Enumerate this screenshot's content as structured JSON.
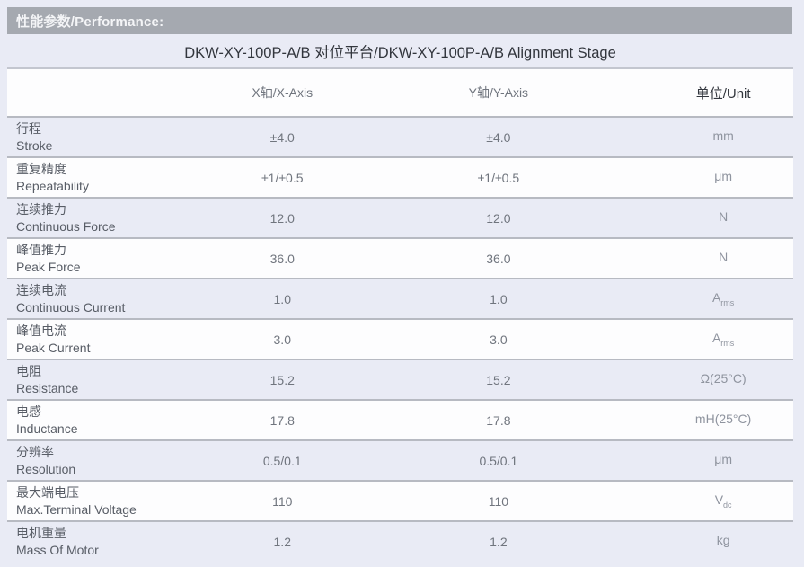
{
  "section": {
    "title": "性能参数/Performance:"
  },
  "table": {
    "title": "DKW-XY-100P-A/B 对位平台/DKW-XY-100P-A/B Alignment Stage",
    "columns": {
      "param": "",
      "x": "X轴/X-Axis",
      "y": "Y轴/Y-Axis",
      "unit": "单位/Unit"
    },
    "rows": [
      {
        "name_zh": "行程",
        "name_en": "Stroke",
        "x": "±4.0",
        "y": "±4.0",
        "unit": "mm",
        "unit_sub": ""
      },
      {
        "name_zh": "重复精度",
        "name_en": "Repeatability",
        "x": "±1/±0.5",
        "y": "±1/±0.5",
        "unit": "μm",
        "unit_sub": ""
      },
      {
        "name_zh": "连续推力",
        "name_en": "Continuous Force",
        "x": "12.0",
        "y": "12.0",
        "unit": "N",
        "unit_sub": ""
      },
      {
        "name_zh": "峰值推力",
        "name_en": "Peak Force",
        "x": "36.0",
        "y": "36.0",
        "unit": "N",
        "unit_sub": ""
      },
      {
        "name_zh": "连续电流",
        "name_en": "Continuous Current",
        "x": "1.0",
        "y": "1.0",
        "unit": "A",
        "unit_sub": "rms"
      },
      {
        "name_zh": "峰值电流",
        "name_en": "Peak Current",
        "x": "3.0",
        "y": "3.0",
        "unit": "A",
        "unit_sub": "rms"
      },
      {
        "name_zh": "电阻",
        "name_en": "Resistance",
        "x": "15.2",
        "y": "15.2",
        "unit": "Ω(25°C)",
        "unit_sub": ""
      },
      {
        "name_zh": "电感",
        "name_en": "Inductance",
        "x": "17.8",
        "y": "17.8",
        "unit": "mH(25°C)",
        "unit_sub": ""
      },
      {
        "name_zh": "分辨率",
        "name_en": "Resolution",
        "x": "0.5/0.1",
        "y": "0.5/0.1",
        "unit": "μm",
        "unit_sub": ""
      },
      {
        "name_zh": "最大端电压",
        "name_en": "Max.Terminal Voltage",
        "x": "110",
        "y": "110",
        "unit": "V",
        "unit_sub": "dc"
      },
      {
        "name_zh": "电机重量",
        "name_en": "Mass Of Motor",
        "x": "1.2",
        "y": "1.2",
        "unit": "kg",
        "unit_sub": ""
      }
    ]
  },
  "colors": {
    "header_bar": "#a5a9b0",
    "page_background": "#e9ebf5",
    "row_white": "#fdfdfe",
    "divider": "#b7bac2",
    "bar_text": "#f4f5f7",
    "heading_text": "#32363d",
    "param_text": "#585d66",
    "value_text": "#70757e",
    "unit_text": "#8f949f"
  }
}
